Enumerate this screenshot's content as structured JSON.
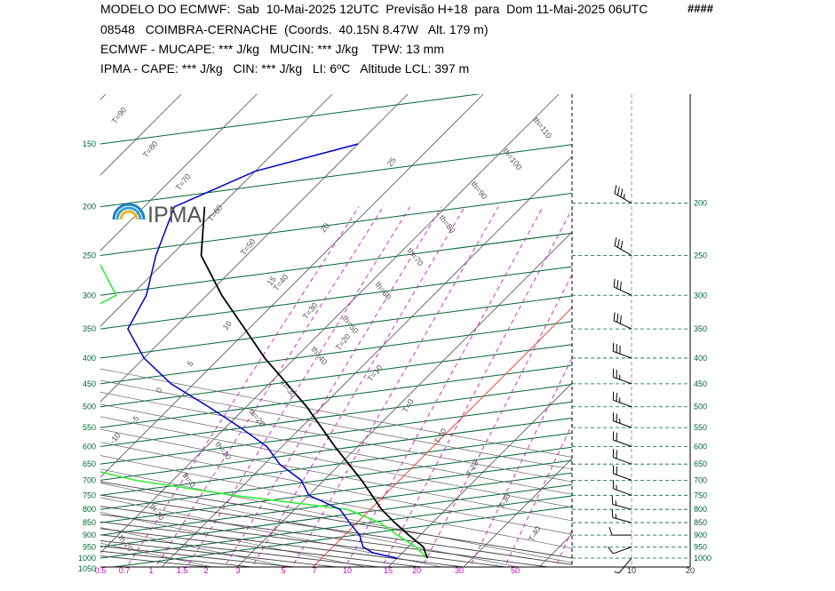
{
  "header": {
    "line1": "MODELO DO ECMWF:  Sab  10-Mai-2025 12UTC  Previsão H+18  para  Dom 11-Mai-2025 06UTC",
    "line1_flag": "####",
    "line2": "08548   COIMBRA-CERNACHE  (Coords.  40.15N 8.47W   Alt. 179 m)",
    "line3": "ECMWF - MUCAPE: *** J/kg   MUCIN: *** J/kg    TPW: 13 mm",
    "line4": "IPMA - CAPE: *** J/kg   CIN: *** J/kg   LI: 6ºC   Altitude LCL: 397 m"
  },
  "logo": {
    "text": "IPMA"
  },
  "colors": {
    "isobar": "#006633",
    "isotherm": "#555555",
    "dry_adiabat": "#cc00cc",
    "moist_adiabat": "#444444",
    "temperature": "#000000",
    "dewpoint": "#0000cc",
    "ipma_profile": "#33ee33",
    "zero_isotherm": "#ff4444",
    "pressure_labels": "#006633",
    "mixing_labels": "#cc00cc"
  },
  "chart_data": {
    "type": "skew-t",
    "pressure_axis_left": [
      150,
      200,
      250,
      300,
      350,
      400,
      450,
      500,
      550,
      600,
      650,
      700,
      750,
      800,
      850,
      900,
      950,
      1000,
      1050
    ],
    "pressure_axis_right": [
      200,
      250,
      300,
      350,
      400,
      450,
      500,
      550,
      600,
      650,
      700,
      750,
      800,
      850,
      900,
      950,
      1000
    ],
    "mixing_ratio_labels": [
      "0.5",
      "0.7",
      "1",
      "1.5",
      "2",
      "3",
      "5",
      "7",
      "10",
      "15",
      "20",
      "30",
      "50"
    ],
    "wind_axis_labels": [
      "10",
      "20"
    ],
    "isotherm_labels": [
      "T=90",
      "T=80",
      "T=70",
      "T=60",
      "T=50",
      "T=40",
      "T=30",
      "T=20",
      "T=10",
      "T=0",
      "T-10",
      "T-20",
      "T-30",
      "T-40"
    ],
    "dry_adiabat_labels": [
      "th=110",
      "th=100",
      "th=90",
      "th=80",
      "th=70",
      "th=60",
      "th=50",
      "th=40",
      "th=30",
      "th=20",
      "th=10",
      "th=0",
      "th-10",
      "th-20"
    ],
    "moist_adiabat_labels": [
      "25",
      "20",
      "15",
      "10",
      "5",
      "0",
      "-5",
      "-10"
    ],
    "isotherm_temps": [
      -90,
      -80,
      -70,
      -60,
      -50,
      -40,
      -30,
      -20,
      -10,
      0,
      10,
      20,
      30,
      40
    ],
    "theta_values": [
      -20,
      -10,
      0,
      10,
      20,
      30,
      40,
      50,
      60,
      70,
      80,
      90,
      100,
      110
    ],
    "moist_adiabat_start_temps": [
      -10,
      -5,
      0,
      5,
      10,
      15,
      20,
      25,
      30,
      35,
      40
    ],
    "mixing_ratio_values": [
      0.5,
      0.7,
      1,
      1.5,
      2,
      3,
      5,
      7,
      10,
      15,
      20,
      30,
      50
    ],
    "temperature_profile": [
      [
        1000,
        14
      ],
      [
        950,
        12
      ],
      [
        900,
        8.5
      ],
      [
        850,
        5
      ],
      [
        800,
        1.5
      ],
      [
        700,
        -5
      ],
      [
        600,
        -13
      ],
      [
        500,
        -22
      ],
      [
        400,
        -34
      ],
      [
        300,
        -48
      ],
      [
        250,
        -56
      ],
      [
        200,
        -62
      ]
    ],
    "dewpoint_profile": [
      [
        1000,
        10
      ],
      [
        975,
        6
      ],
      [
        950,
        4
      ],
      [
        900,
        2
      ],
      [
        850,
        -1
      ],
      [
        800,
        -4
      ],
      [
        750,
        -10
      ],
      [
        700,
        -13
      ],
      [
        650,
        -18
      ],
      [
        600,
        -22
      ],
      [
        550,
        -28
      ],
      [
        500,
        -35
      ],
      [
        450,
        -43
      ],
      [
        400,
        -50
      ],
      [
        350,
        -56
      ],
      [
        300,
        -58
      ],
      [
        250,
        -62
      ],
      [
        200,
        -66
      ],
      [
        170,
        -60
      ],
      [
        150,
        -50
      ]
    ],
    "ipma_profile": [
      [
        1000,
        14
      ],
      [
        950,
        11
      ],
      [
        900,
        7
      ],
      [
        850,
        3
      ],
      [
        800,
        -3
      ],
      [
        750,
        -20
      ],
      [
        700,
        -35
      ],
      [
        650,
        -46
      ],
      [
        600,
        -50
      ],
      [
        550,
        -56
      ],
      [
        500,
        -57
      ],
      [
        450,
        -60
      ],
      [
        400,
        -64
      ],
      [
        350,
        -66
      ],
      [
        300,
        -62
      ],
      [
        250,
        -70
      ],
      [
        200,
        -80
      ],
      [
        150,
        -93
      ],
      [
        120,
        -93
      ]
    ],
    "wind_levels": [
      200,
      250,
      300,
      350,
      400,
      450,
      500,
      550,
      600,
      650,
      700,
      750,
      800,
      850,
      900,
      950,
      1000
    ],
    "wind_speed_kt": [
      35,
      30,
      30,
      30,
      30,
      25,
      25,
      25,
      20,
      20,
      20,
      15,
      15,
      15,
      10,
      10,
      5
    ],
    "wind_dir_deg": [
      300,
      300,
      295,
      295,
      290,
      290,
      290,
      290,
      290,
      290,
      290,
      290,
      285,
      285,
      270,
      250,
      220
    ]
  }
}
